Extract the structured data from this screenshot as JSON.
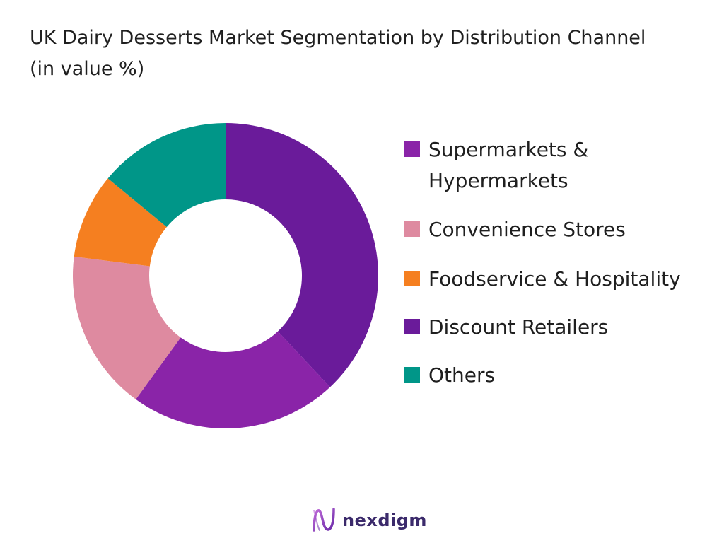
{
  "title": "UK Dairy Desserts Market Segmentation by Distribution Channel (in value %)",
  "chart_data": {
    "type": "pie",
    "donut": true,
    "title": "UK Dairy Desserts Market Segmentation by Distribution Channel (in value %)",
    "legend_position": "right",
    "series": [
      {
        "name": "Supermarkets & Hypermarkets",
        "value": 22,
        "color": "#8a24a8"
      },
      {
        "name": "Convenience Stores",
        "value": 17,
        "color": "#de8aa0"
      },
      {
        "name": "Foodservice & Hospitality",
        "value": 9,
        "color": "#f57f20"
      },
      {
        "name": "Discount Retailers",
        "value": 38,
        "color": "#6a1b9a"
      },
      {
        "name": "Others",
        "value": 14,
        "color": "#009688"
      }
    ]
  },
  "logo": {
    "text": "nexdigm",
    "color": "#3b2a6b",
    "accent": "#7b3fb5"
  }
}
